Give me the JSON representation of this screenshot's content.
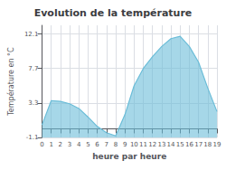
{
  "chart_data": {
    "type": "area",
    "title": "Evolution de la température",
    "xlabel": "heure par heure",
    "ylabel": "Température en °C",
    "x": [
      0,
      1,
      2,
      3,
      4,
      5,
      6,
      7,
      8,
      9,
      10,
      11,
      12,
      13,
      14,
      15,
      16,
      17,
      18,
      19
    ],
    "values": [
      0.5,
      3.6,
      3.5,
      3.2,
      2.6,
      1.5,
      0.3,
      -0.5,
      -0.9,
      1.8,
      5.5,
      7.7,
      9.2,
      10.5,
      11.5,
      11.8,
      10.5,
      8.5,
      5.2,
      2.2
    ],
    "color": "#6bbdd8",
    "xlim": [
      0,
      19
    ],
    "xticks": [
      0,
      1,
      2,
      3,
      4,
      5,
      6,
      7,
      8,
      9,
      10,
      11,
      12,
      13,
      14,
      15,
      16,
      17,
      18,
      19
    ],
    "ylim": [
      -1.1,
      13.2
    ],
    "yticks": [
      -1.1,
      3.3,
      7.7,
      12.1
    ],
    "grid": true
  }
}
